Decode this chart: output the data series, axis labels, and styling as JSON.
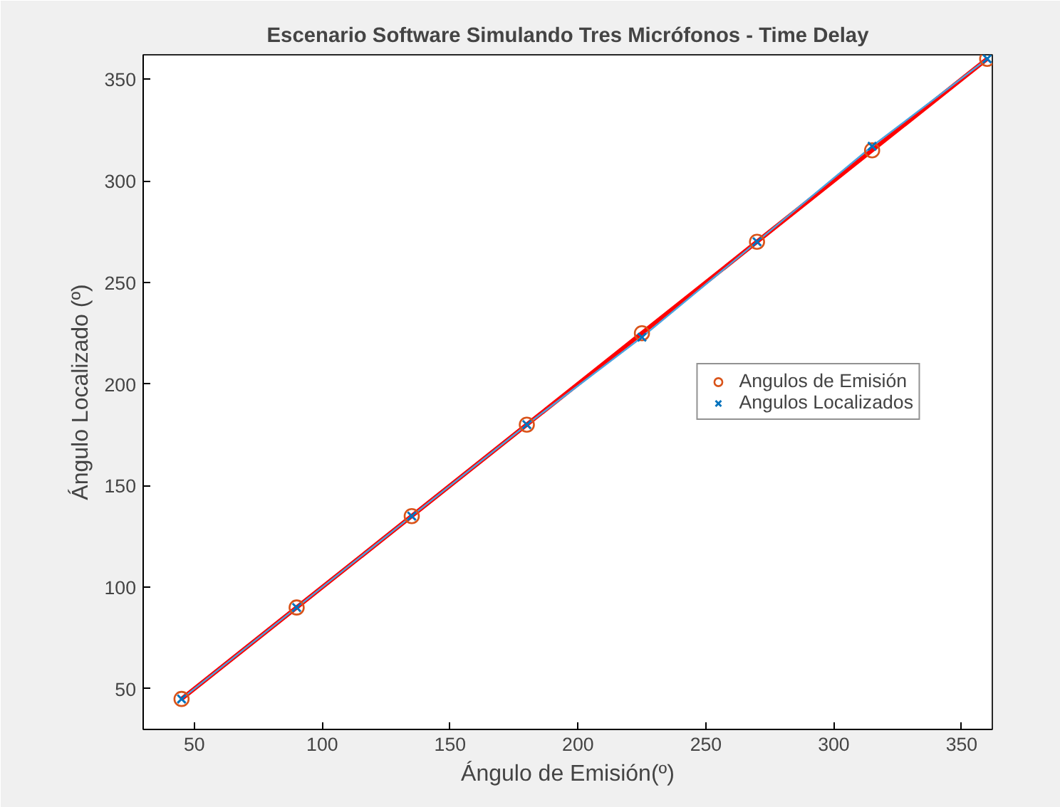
{
  "chart_data": {
    "type": "scatter",
    "title": "Escenario Software Simulando Tres Micrófonos - Time Delay",
    "xlabel": "Ángulo de Emisión(º)",
    "ylabel": "Ángulo Localizado (º)",
    "x": [
      45,
      90,
      135,
      180,
      225,
      270,
      315,
      360
    ],
    "series": [
      {
        "type": "line",
        "color": "#ff0000",
        "values": [
          45,
          90,
          135,
          180,
          225,
          270,
          315,
          360
        ]
      },
      {
        "type": "line",
        "color": "#4aa3df",
        "values": [
          45,
          90,
          135,
          180,
          223,
          270,
          317,
          360
        ]
      },
      {
        "name": "Angulos de Emisión",
        "marker": "circle",
        "color": "#d95319",
        "values": [
          45,
          90,
          135,
          180,
          225,
          270,
          315,
          360
        ]
      },
      {
        "name": "Angulos Localizados",
        "marker": "cross",
        "color": "#0072bd",
        "values": [
          45,
          90,
          135,
          180,
          223,
          270,
          317,
          360
        ]
      }
    ],
    "xlim": [
      30,
      362
    ],
    "ylim": [
      30,
      362
    ],
    "xticks": [
      50,
      100,
      150,
      200,
      250,
      300,
      350
    ],
    "yticks": [
      50,
      100,
      150,
      200,
      250,
      300,
      350
    ],
    "grid": false,
    "legend": "right"
  }
}
